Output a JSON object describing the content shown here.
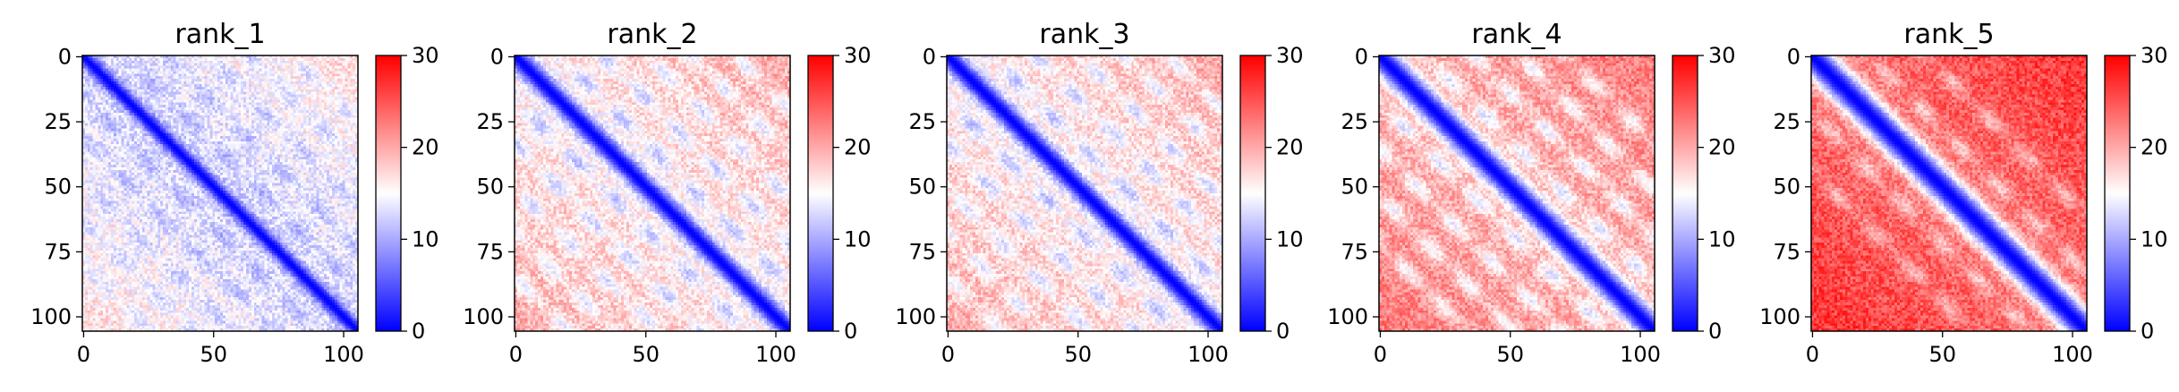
{
  "chart_data": [
    {
      "type": "heatmap",
      "title": "rank_1",
      "matrix_size": 106,
      "xticks": [
        0,
        50,
        100
      ],
      "yticks": [
        0,
        25,
        50,
        75,
        100
      ],
      "colorbar": {
        "min": 0,
        "max": 30,
        "ticks": [
          0,
          10,
          20,
          30
        ],
        "colormap": "bwr"
      },
      "pattern": {
        "diag_width": 3,
        "band_offsets": [
          16,
          32,
          48,
          64,
          80
        ],
        "band_strength": 0.35,
        "mean": 13
      }
    },
    {
      "type": "heatmap",
      "title": "rank_2",
      "matrix_size": 106,
      "xticks": [
        0,
        50,
        100
      ],
      "yticks": [
        0,
        25,
        50,
        75,
        100
      ],
      "colorbar": {
        "min": 0,
        "max": 30,
        "ticks": [
          0,
          10,
          20,
          30
        ],
        "colormap": "bwr"
      },
      "pattern": {
        "diag_width": 4,
        "band_offsets": [
          17,
          34,
          51,
          68,
          85
        ],
        "band_strength": 0.45,
        "mean": 16
      }
    },
    {
      "type": "heatmap",
      "title": "rank_3",
      "matrix_size": 106,
      "xticks": [
        0,
        50,
        100
      ],
      "yticks": [
        0,
        25,
        50,
        75,
        100
      ],
      "colorbar": {
        "min": 0,
        "max": 30,
        "ticks": [
          0,
          10,
          20,
          30
        ],
        "colormap": "bwr"
      },
      "pattern": {
        "diag_width": 4,
        "band_offsets": [
          17,
          34,
          51,
          68,
          85
        ],
        "band_strength": 0.45,
        "mean": 16
      }
    },
    {
      "type": "heatmap",
      "title": "rank_4",
      "matrix_size": 106,
      "xticks": [
        0,
        50,
        100
      ],
      "yticks": [
        0,
        25,
        50,
        75,
        100
      ],
      "colorbar": {
        "min": 0,
        "max": 30,
        "ticks": [
          0,
          10,
          20,
          30
        ],
        "colormap": "bwr"
      },
      "pattern": {
        "diag_width": 5,
        "band_offsets": [
          18,
          36,
          54,
          72
        ],
        "band_strength": 0.45,
        "mean": 19
      }
    },
    {
      "type": "heatmap",
      "title": "rank_5",
      "matrix_size": 106,
      "xticks": [
        0,
        50,
        100
      ],
      "yticks": [
        0,
        25,
        50,
        75,
        100
      ],
      "colorbar": {
        "min": 0,
        "max": 30,
        "ticks": [
          0,
          10,
          20,
          30
        ],
        "colormap": "bwr"
      },
      "pattern": {
        "diag_width": 6,
        "band_offsets": [
          22,
          44
        ],
        "band_strength": 0.3,
        "mean": 23
      }
    }
  ]
}
